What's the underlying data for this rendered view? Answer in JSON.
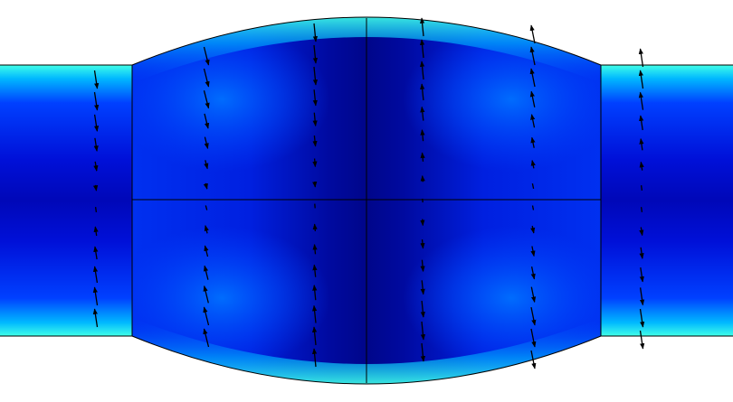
{
  "figure": {
    "description_free": true,
    "colormap": [
      "#00008a",
      "#0010d8",
      "#0040ff",
      "#00b8ff",
      "#40ffe8"
    ],
    "outline_color": "#000000",
    "arrow_color": "#000000",
    "background": "#ffffff"
  }
}
